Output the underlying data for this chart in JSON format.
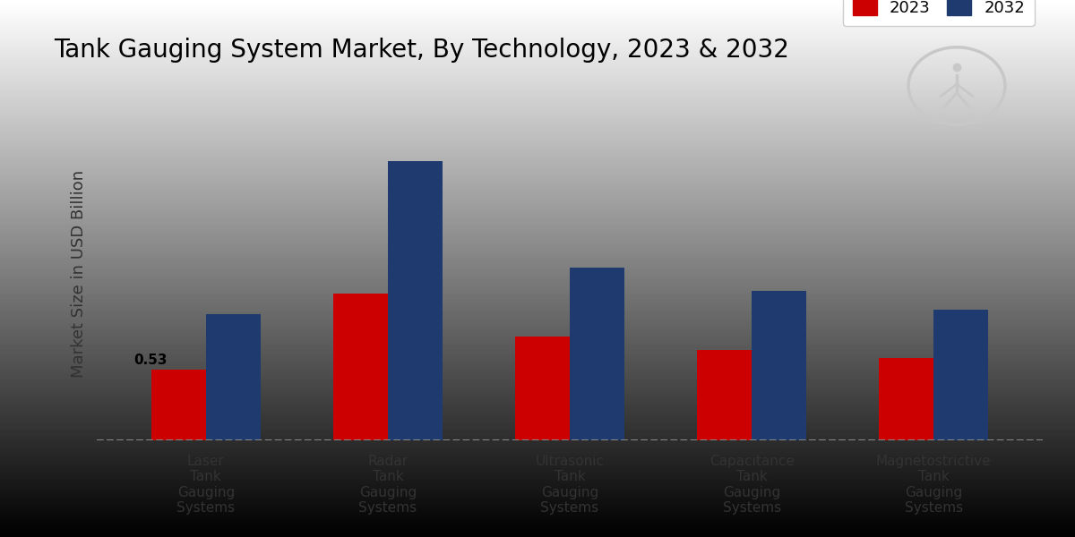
{
  "title": "Tank Gauging System Market, By Technology, 2023 & 2032",
  "ylabel": "Market Size in USD Billion",
  "categories": [
    "Laser\nTank\nGauging\nSystems",
    "Radar\nTank\nGauging\nSystems",
    "Ultrasonic\nTank\nGauging\nSystems",
    "Capacitance\nTank\nGauging\nSystems",
    "Magnetostrictive\nTank\nGauging\nSystems"
  ],
  "values_2023": [
    0.53,
    1.1,
    0.78,
    0.68,
    0.62
  ],
  "values_2032": [
    0.95,
    2.1,
    1.3,
    1.12,
    0.98
  ],
  "color_2023": "#cc0000",
  "color_2032": "#1e3a6e",
  "label_2023": "2023",
  "label_2032": "2032",
  "annotation_value": "0.53",
  "annotation_index": 0,
  "bar_annotation_fontsize": 11,
  "title_fontsize": 20,
  "legend_fontsize": 13,
  "axis_label_fontsize": 13,
  "tick_label_fontsize": 11,
  "ylim": [
    0,
    2.5
  ],
  "bar_width": 0.3,
  "red_stripe_color": "#cc0000"
}
